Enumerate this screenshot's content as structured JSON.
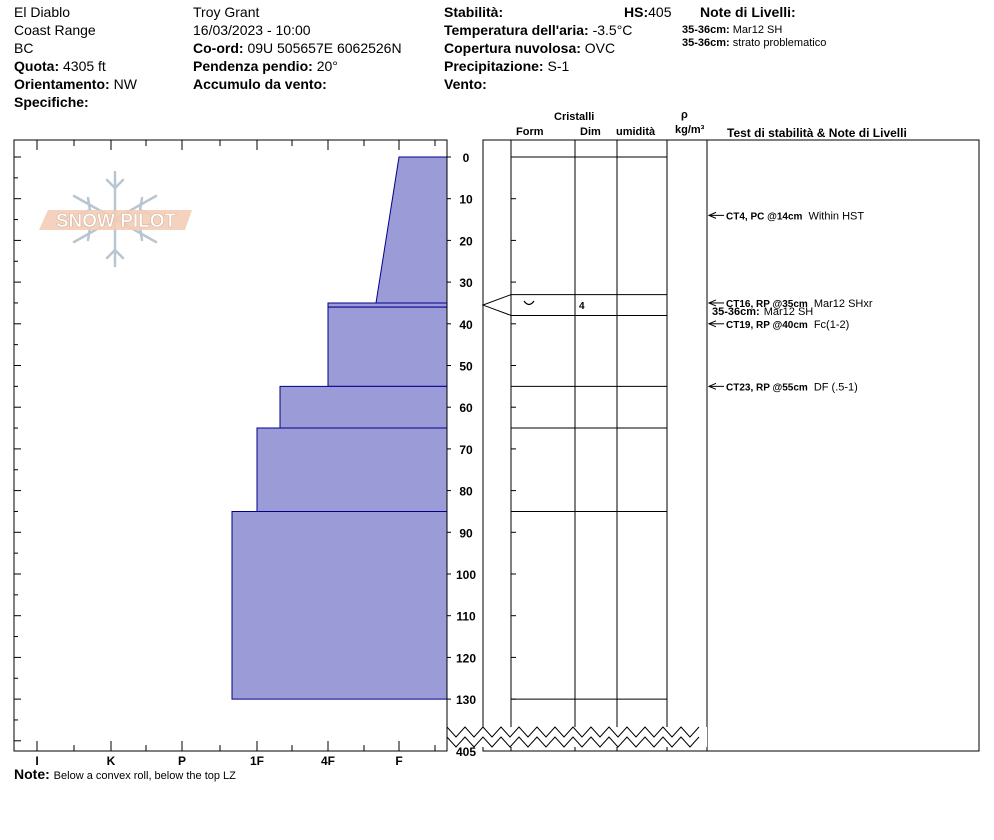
{
  "header": {
    "location": "El Diablo",
    "range": "Coast Range",
    "province": "BC",
    "elevation_label": "Quota:",
    "elevation_value": "4305 ft",
    "aspect_label": "Orientamento:",
    "aspect_value": "NW",
    "specifics_label": "Specifiche:",
    "observer": "Troy Grant",
    "datetime": "16/03/2023 - 10:00",
    "coord_label": "Co-ord:",
    "coord_value": "09U 505657E 6062526N",
    "slope_label": "Pendenza pendio:",
    "slope_value": "20°",
    "wind_loading_label": "Accumulo da vento:",
    "stability_label": "Stabilità:",
    "hs_label": "HS:",
    "hs_value": "405",
    "air_temp_label": "Temperatura dell'aria:",
    "air_temp_value": "-3.5°C",
    "sky_label": "Copertura nuvolosa:",
    "sky_value": "OVC",
    "precip_label": "Precipitazione:",
    "precip_value": "S-1",
    "wind_label": "Vento:",
    "layer_notes_title": "Note di Livelli:",
    "layer_notes": [
      {
        "depth": "35-36cm:",
        "text": "Mar12 SH"
      },
      {
        "depth": "35-36cm:",
        "text": "strato problematico"
      }
    ]
  },
  "columns": {
    "crystals": "Cristalli",
    "form": "Form",
    "size": "Dim",
    "moisture": "umidità",
    "rho": "ρ",
    "density_unit": "kg/m³",
    "tests": "Test di stabilità & Note di Livelli"
  },
  "note": {
    "label": "Note:",
    "text": "Below a convex roll, below the top LZ"
  },
  "logo_text": "SNOW PILOT",
  "chart_data": {
    "type": "area",
    "title": "",
    "xlabel": "",
    "ylabel": "",
    "hardness_ticks": [
      "I",
      "K",
      "P",
      "1F",
      "4F",
      "F"
    ],
    "depth_ticks": [
      0,
      10,
      20,
      30,
      40,
      50,
      60,
      70,
      80,
      90,
      100,
      110,
      120,
      130
    ],
    "depth_bottom_label": "405",
    "ylim": [
      0,
      130
    ],
    "layers": [
      {
        "top": 0,
        "bottom": 35,
        "hardness_top": "F+",
        "hardness_bottom": "F-"
      },
      {
        "top": 35,
        "bottom": 36,
        "hardness": "4F"
      },
      {
        "top": 36,
        "bottom": 55,
        "hardness": "4F"
      },
      {
        "top": 55,
        "bottom": 65,
        "hardness": "1F+"
      },
      {
        "top": 65,
        "bottom": 85,
        "hardness": "1F"
      },
      {
        "top": 85,
        "bottom": 130,
        "hardness": "1F-"
      }
    ],
    "layer_boundaries": [
      0,
      33,
      38,
      55,
      65,
      85,
      130
    ],
    "crystal_layers": [
      {
        "top": 33,
        "bottom": 38,
        "form": "SH",
        "size": "4"
      }
    ],
    "stability_tests": [
      {
        "depth": 14,
        "label": "CT4, PC @14cm",
        "comment": "Within HST"
      },
      {
        "depth": 35,
        "label": "CT16, RP @35cm",
        "comment": "Mar12 SHxr"
      },
      {
        "depth": 40,
        "label": "CT19, RP @40cm",
        "comment": "Fc(1-2)"
      },
      {
        "depth": 55,
        "label": "CT23, RP @55cm",
        "comment": "DF (.5-1)"
      }
    ],
    "layer_note": {
      "depth": 36,
      "label": "35-36cm:",
      "text": "Mar12 SH"
    },
    "colors": {
      "profile_fill": "#9b9bd7",
      "profile_stroke": "#00008b"
    }
  }
}
